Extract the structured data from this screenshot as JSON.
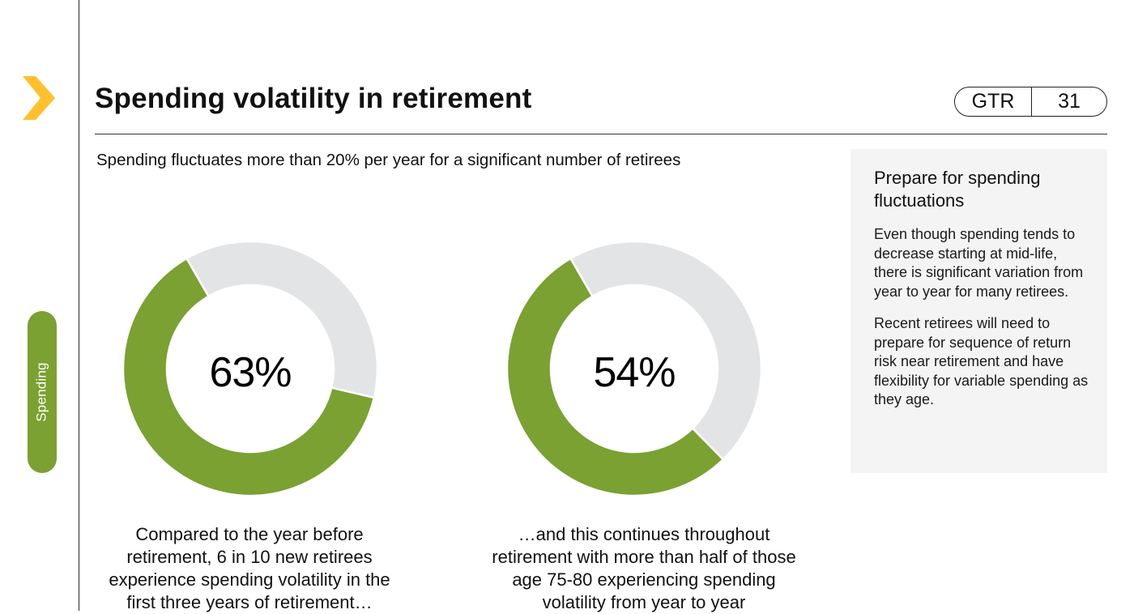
{
  "page": {
    "title": "Spending volatility in retirement",
    "badge": {
      "code": "GTR",
      "page": "31"
    },
    "section_tab": "Spending",
    "subtitle": "Spending fluctuates more than 20% per year for a significant number of retirees"
  },
  "sidebar_panel": {
    "heading": "Prepare for spending fluctuations",
    "paragraph_1": "Even though spending tends to decrease starting at mid-life, there is significant variation from year to year for many retirees.",
    "paragraph_2": "Recent retirees will need to prepare for sequence of return risk near retirement and have flexibility for variable spending as they age."
  },
  "colors": {
    "accent_green": "#7aa132",
    "remainder_gray": "#e3e4e6",
    "chevron_yellow": "#ffc030"
  },
  "chart_data": [
    {
      "type": "pie",
      "variant": "donut",
      "center_label": "63%",
      "values": [
        63,
        37
      ],
      "colors": [
        "#7aa132",
        "#e3e4e6"
      ],
      "caption": "Compared to the year before retirement, 6 in 10 new retirees experience spending volatility in the first three years of retirement…"
    },
    {
      "type": "pie",
      "variant": "donut",
      "center_label": "54%",
      "values": [
        54,
        46
      ],
      "colors": [
        "#7aa132",
        "#e3e4e6"
      ],
      "caption": "…and this continues throughout retirement with more than half of those age 75-80 experiencing spending volatility from year to year"
    }
  ]
}
